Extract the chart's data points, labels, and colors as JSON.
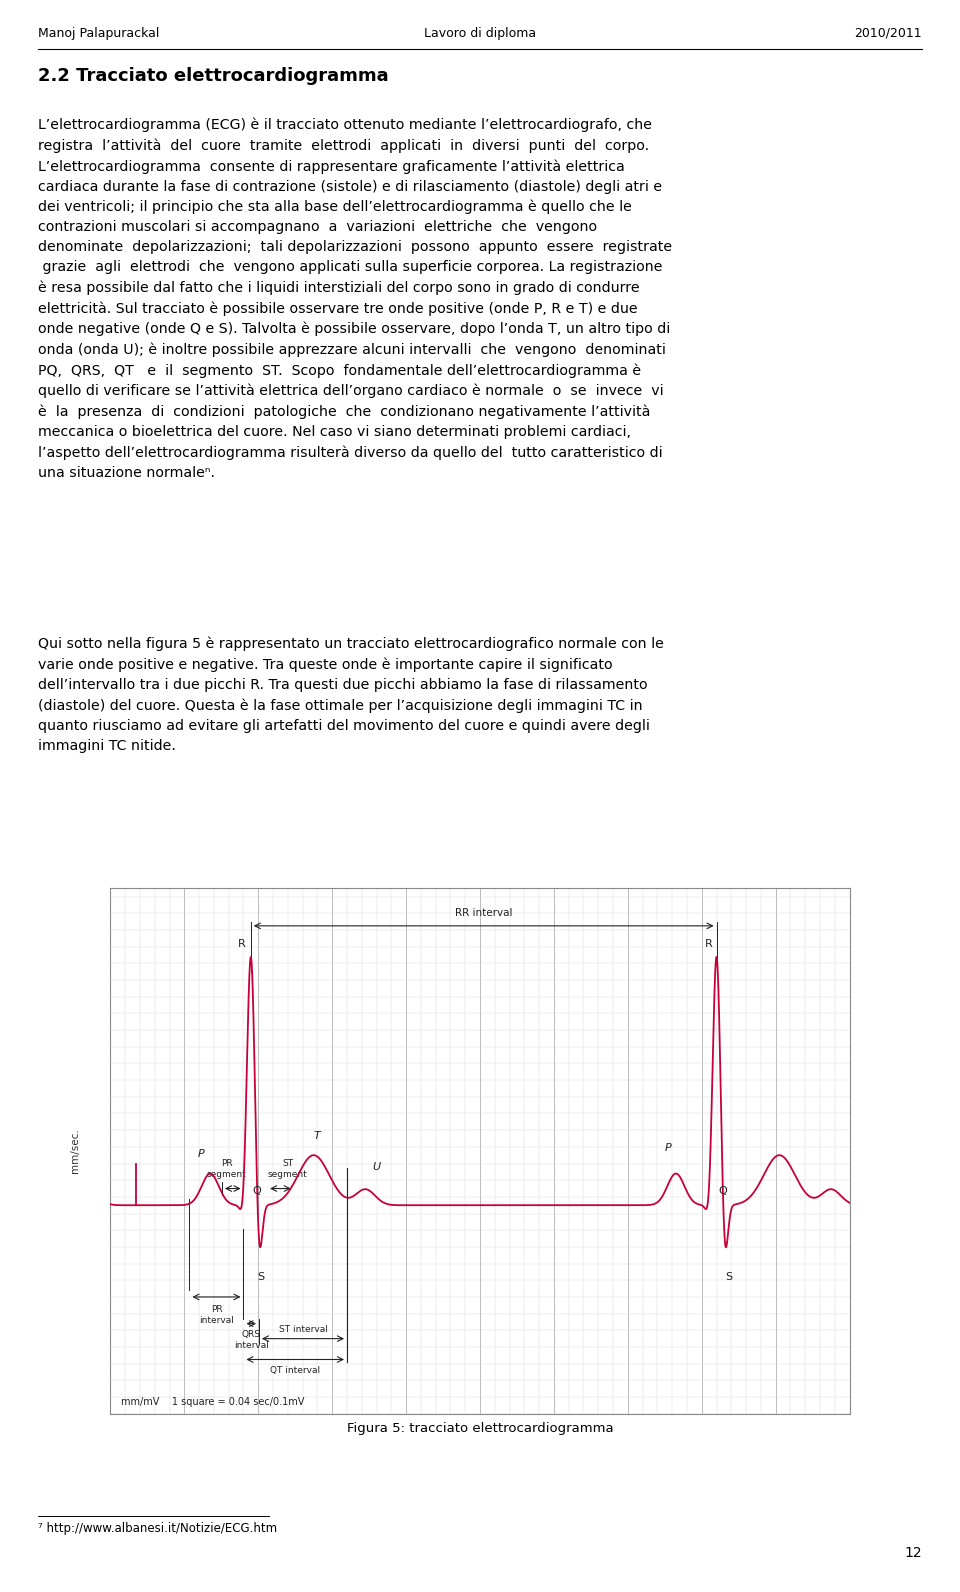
{
  "header_left": "Manoj Palapurackal",
  "header_center": "Lavoro di diploma",
  "header_right": "2010/2011",
  "section_title": "2.2 Tracciato elettrocardiogramma",
  "page_number": "12",
  "footnote_number": "7",
  "footnote_text": "http://www.albanesi.it/Notizie/ECG.htm",
  "figure_caption": "Figura 5: tracciato elettrocardiogramma",
  "para1": "L’elettrocardiogramma (ECG) è il tracciato ottenuto mediante l’elettrocardiografo, che registra  l’attività  del  cuore  tramite  elettrodi  applicati  in  diversi  punti  del  corpo. L’elettrocardiogramma  consente di rappresentare graficamente l’attività elettrica cardiaca durante la fase di contrazione (sistole) e di rilasciamento (diastole) degli atri e dei ventricoli; il principio che sta alla base dell’elettrocardiogramma è quello che le contrazioni muscolari si accompagnano  a  variazioni  elettriche  che  vengono  denominate  depolarizzazioni;  tali depolarizzazioni  possono  appunto  essere  registrate  grazie  agli  elettrodi  che  vengono applicati sulla superficie corporea. La registrazione è resa possibile dal fatto che i liquidi interstiziali del corpo sono in grado di condurre elettricità. Sul tracciato è possibile osservare tre onde positive (onde P, R e T) e due onde negative (onde Q e S). Talvolta è possibile osservare, dopo l’onda T, un altro tipo di onda (onda U); è inoltre possibile apprezzare alcuni intervalli  che  vengono  denominati  PQ,  QRS,  QT   e  il  segmento  ST.  Scopo  fondamentale dell’elettrocardiogramma è quello di verificare se l’attività elettrica dell’organo cardiaco è normale  o  se  invece  vi  è  la  presenza  di  condizioni  patologiche  che  condizionano negativamente l’attività meccanica o bioelettrica del cuore. Nel caso vi siano determinati problemi cardiaci, l’aspetto dell’elettrocardiogramma risulterà diverso da quello del  tutto caratteristico di una situazione normaleⁿ.",
  "para2": "Qui sotto nella figura 5 è rappresentato un tracciato elettrocardiografico normale con le varie onde positive e negative. Tra queste onde è importante capire il significato dell’intervallo tra i due picchi R. Tra questi due picchi abbiamo la fase di rilassamento (diastole) del cuore. Questa è la fase ottimale per l’acquisizione degli immagini TC in quanto riusciamo ad evitare gli artefatti del movimento del cuore e quindi avere degli immagini TC nitide.",
  "ecg_color": "#c8003a",
  "grid_major_color": "#c8c8c8",
  "grid_minor_color": "#e0e0e0",
  "annotation_color": "#222222",
  "background_color": "#ffffff",
  "plot_bg_color": "#ffffff"
}
